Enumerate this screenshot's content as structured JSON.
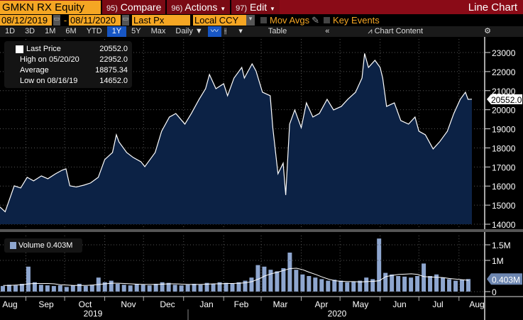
{
  "header": {
    "ticker": "GMKN RX Equity",
    "compare": {
      "num": "95)",
      "label": "Compare"
    },
    "actions": {
      "num": "96)",
      "label": "Actions"
    },
    "edit": {
      "num": "97)",
      "label": "Edit"
    },
    "title": "Line Chart"
  },
  "controls": {
    "start_date": "08/12/2019",
    "end_date": "08/11/2020",
    "separator": "-",
    "field": "Last Px",
    "currency": "Local CCY",
    "mov_avgs": "Mov Avgs",
    "key_events": "Key Events"
  },
  "toolbar": {
    "ranges": [
      "1D",
      "3D",
      "1M",
      "6M",
      "YTD",
      "1Y",
      "5Y",
      "Max"
    ],
    "selected": "1Y",
    "frequency": "Daily ▼",
    "table": "Table",
    "collapse": "«",
    "chart_content": "Chart Content"
  },
  "legend": {
    "last_price_label": "Last Price",
    "last_price": "20552.0",
    "high_label": "High on 05/20/20",
    "high": "22952.0",
    "average_label": "Average",
    "average": "18875.34",
    "low_label": "Low on 08/16/19",
    "low": "14652.0"
  },
  "volume_legend": {
    "label": "Volume 0.403M"
  },
  "colors": {
    "accent": "#f5a623",
    "header_bg": "#8a0b17",
    "area": "#0c2245",
    "line": "#ffffff",
    "volume_bar": "#8ea6cf"
  },
  "chart_data": [
    {
      "type": "area",
      "ylim": [
        14000,
        23000
      ],
      "yticks": [
        "14000",
        "15000",
        "16000",
        "17000",
        "18000",
        "19000",
        "20000",
        "21000",
        "22000",
        "23000"
      ],
      "last_label": "20552.0",
      "grid": true,
      "x": [
        "2019-08-12",
        "2019-08-16",
        "2019-08-23",
        "2019-08-28",
        "2019-09-02",
        "2019-09-07",
        "2019-09-13",
        "2019-09-18",
        "2019-09-24",
        "2019-09-29",
        "2019-10-02",
        "2019-10-05",
        "2019-10-10",
        "2019-10-16",
        "2019-10-21",
        "2019-10-27",
        "2019-11-01",
        "2019-11-07",
        "2019-11-10",
        "2019-11-12",
        "2019-11-18",
        "2019-11-23",
        "2019-11-29",
        "2019-12-02",
        "2019-12-04",
        "2019-12-10",
        "2019-12-15",
        "2019-12-21",
        "2019-12-26",
        "2020-01-02",
        "2020-01-07",
        "2020-01-13",
        "2020-01-18",
        "2020-01-21",
        "2020-01-26",
        "2020-02-01",
        "2020-02-04",
        "2020-02-09",
        "2020-02-15",
        "2020-02-17",
        "2020-02-23",
        "2020-02-26",
        "2020-03-02",
        "2020-03-08",
        "2020-03-10",
        "2020-03-14",
        "2020-03-18",
        "2020-03-20",
        "2020-03-23",
        "2020-03-27",
        "2020-04-01",
        "2020-04-05",
        "2020-04-10",
        "2020-04-15",
        "2020-04-21",
        "2020-04-26",
        "2020-05-02",
        "2020-05-07",
        "2020-05-13",
        "2020-05-18",
        "2020-05-20",
        "2020-05-23",
        "2020-05-28",
        "2020-06-01",
        "2020-06-03",
        "2020-06-06",
        "2020-06-12",
        "2020-06-17",
        "2020-06-23",
        "2020-06-28",
        "2020-07-01",
        "2020-07-06",
        "2020-07-12",
        "2020-07-17",
        "2020-07-23",
        "2020-07-28",
        "2020-08-02",
        "2020-08-06",
        "2020-08-08",
        "2020-08-11"
      ],
      "values": [
        14900,
        14652,
        16012,
        15900,
        16458,
        16272,
        16532,
        16384,
        16644,
        16830,
        16904,
        16012,
        15950,
        16050,
        16161,
        16458,
        17387,
        17759,
        18688,
        18317,
        17759,
        17499,
        17276,
        17016,
        17201,
        17759,
        18874,
        19618,
        19803,
        19246,
        19803,
        20547,
        21104,
        21848,
        21104,
        21365,
        20733,
        21662,
        22219,
        21662,
        22405,
        22034,
        20918,
        20733,
        19060,
        16644,
        17201,
        15529,
        19246,
        19989,
        19060,
        20361,
        19618,
        19803,
        20547,
        19989,
        20175,
        20547,
        20918,
        21662,
        22952,
        22219,
        22591,
        22219,
        21662,
        20175,
        20361,
        19432,
        19246,
        19618,
        18874,
        18688,
        17945,
        18317,
        18874,
        19803,
        20547,
        20918,
        20547,
        20552
      ]
    },
    {
      "type": "bar",
      "ylim": [
        0,
        1.7
      ],
      "yticks": [
        "0",
        "1M",
        "1.5M"
      ],
      "last_label": "0.403M",
      "x_start": "2019-08-12",
      "x_end": "2020-08-11",
      "values": [
        0.18,
        0.22,
        0.2,
        0.25,
        0.8,
        0.3,
        0.22,
        0.2,
        0.18,
        0.2,
        0.15,
        0.2,
        0.25,
        0.18,
        0.22,
        0.45,
        0.3,
        0.35,
        0.25,
        0.22,
        0.2,
        0.25,
        0.22,
        0.2,
        0.25,
        0.3,
        0.28,
        0.22,
        0.2,
        0.22,
        0.25,
        0.22,
        0.28,
        0.25,
        0.3,
        0.28,
        0.25,
        0.3,
        0.35,
        0.45,
        0.85,
        0.8,
        0.7,
        0.65,
        0.75,
        1.25,
        0.7,
        0.55,
        0.5,
        0.45,
        0.4,
        0.35,
        0.38,
        0.35,
        0.3,
        0.32,
        0.35,
        0.45,
        0.4,
        1.7,
        0.6,
        0.55,
        0.5,
        0.48,
        0.45,
        0.5,
        0.9,
        0.5,
        0.55,
        0.45,
        0.4,
        0.35,
        0.38,
        0.403
      ],
      "moving_average": [
        0.2,
        0.2,
        0.21,
        0.22,
        0.25,
        0.26,
        0.26,
        0.26,
        0.25,
        0.22,
        0.21,
        0.2,
        0.2,
        0.2,
        0.21,
        0.23,
        0.25,
        0.27,
        0.27,
        0.26,
        0.25,
        0.24,
        0.23,
        0.23,
        0.23,
        0.24,
        0.25,
        0.25,
        0.24,
        0.23,
        0.23,
        0.23,
        0.24,
        0.25,
        0.25,
        0.26,
        0.26,
        0.27,
        0.28,
        0.32,
        0.4,
        0.5,
        0.57,
        0.62,
        0.68,
        0.74,
        0.75,
        0.7,
        0.62,
        0.55,
        0.47,
        0.4,
        0.35,
        0.33,
        0.32,
        0.32,
        0.31,
        0.32,
        0.33,
        0.35,
        0.48,
        0.52,
        0.55,
        0.56,
        0.57,
        0.55,
        0.48,
        0.47,
        0.46,
        0.45,
        0.42,
        0.4,
        0.38,
        0.36
      ]
    }
  ],
  "x_axis": {
    "months": [
      "Aug",
      "Sep",
      "Oct",
      "Nov",
      "Dec",
      "Jan",
      "Feb",
      "Mar",
      "Apr",
      "May",
      "Jun",
      "Jul",
      "Aug"
    ],
    "years": [
      "2019",
      "2020"
    ]
  }
}
